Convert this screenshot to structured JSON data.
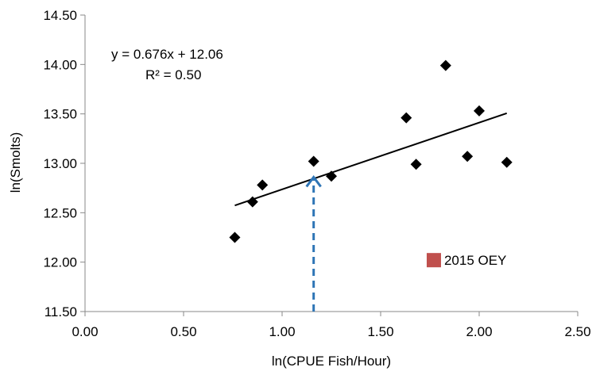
{
  "chart_data": {
    "type": "scatter",
    "xlabel": "ln(CPUE Fish/Hour)",
    "ylabel": "ln(Smolts)",
    "xlim": [
      0.0,
      2.5
    ],
    "ylim": [
      11.5,
      14.5
    ],
    "x_ticks": [
      "0.00",
      "0.50",
      "1.00",
      "1.50",
      "2.00",
      "2.50"
    ],
    "y_ticks": [
      "11.50",
      "12.00",
      "12.50",
      "13.00",
      "13.50",
      "14.00",
      "14.50"
    ],
    "grid": false,
    "series": [
      {
        "marker": "diamond",
        "color": "#000000",
        "points": [
          {
            "x": 0.76,
            "y": 12.25
          },
          {
            "x": 0.85,
            "y": 12.61
          },
          {
            "x": 0.9,
            "y": 12.78
          },
          {
            "x": 1.16,
            "y": 13.02
          },
          {
            "x": 1.25,
            "y": 12.87
          },
          {
            "x": 1.63,
            "y": 13.46
          },
          {
            "x": 1.68,
            "y": 12.99
          },
          {
            "x": 1.83,
            "y": 13.99
          },
          {
            "x": 1.94,
            "y": 13.07
          },
          {
            "x": 2.0,
            "y": 13.53
          },
          {
            "x": 2.14,
            "y": 13.01
          }
        ]
      },
      {
        "name": "2015 OEY",
        "marker": "square",
        "color": "#c0504d",
        "points": [
          {
            "x": 1.77,
            "y": 12.02
          }
        ]
      }
    ],
    "trendline": {
      "slope": 0.676,
      "intercept": 12.06,
      "x_range": [
        0.76,
        2.14
      ],
      "equation": "y = 0.676x + 12.06",
      "r_squared": "R² = 0.50"
    },
    "reference_arrow": {
      "x": 1.16,
      "y_from": 11.5,
      "y_to": 12.86,
      "color": "#2e75b6",
      "style": "dashed"
    },
    "labels": {
      "oey": "2015 OEY"
    }
  }
}
